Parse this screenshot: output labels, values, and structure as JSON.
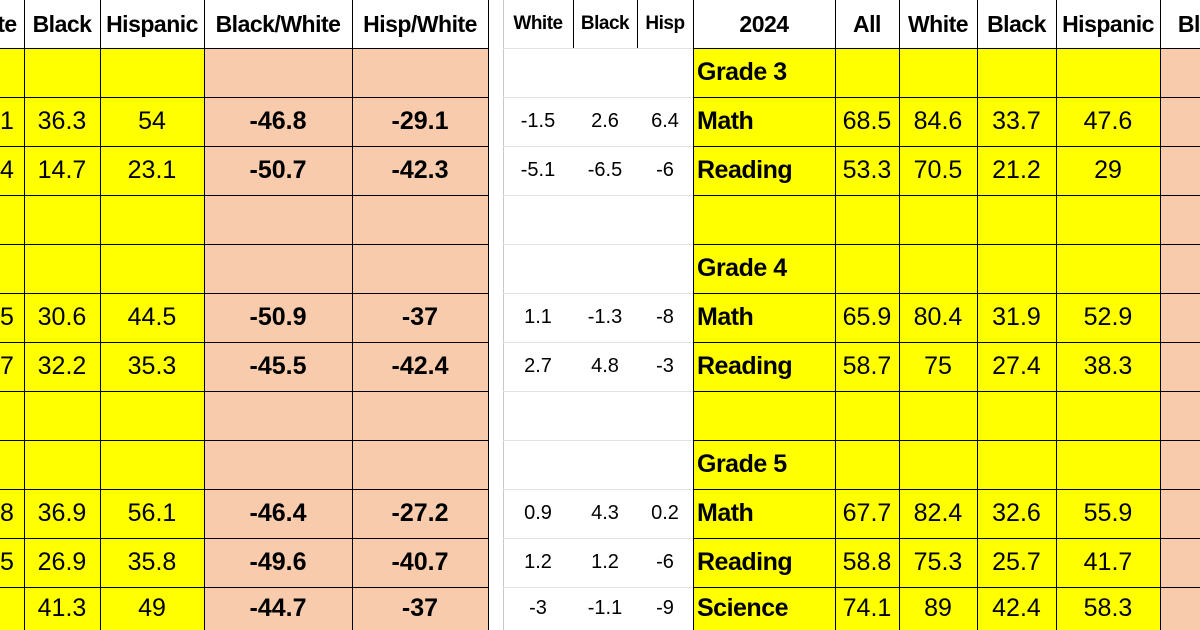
{
  "left_table": {
    "headers": [
      "te",
      "Black",
      "Hispanic",
      "Black/White",
      "Hisp/White"
    ],
    "rows": [
      [
        "",
        "",
        "",
        "",
        ""
      ],
      [
        "1",
        "36.3",
        "54",
        "-46.8",
        "-29.1"
      ],
      [
        "4",
        "14.7",
        "23.1",
        "-50.7",
        "-42.3"
      ],
      [
        "",
        "",
        "",
        "",
        ""
      ],
      [
        "",
        "",
        "",
        "",
        ""
      ],
      [
        "5",
        "30.6",
        "44.5",
        "-50.9",
        "-37"
      ],
      [
        "7",
        "32.2",
        "35.3",
        "-45.5",
        "-42.4"
      ],
      [
        "",
        "",
        "",
        "",
        ""
      ],
      [
        "",
        "",
        "",
        "",
        ""
      ],
      [
        "8",
        "36.9",
        "56.1",
        "-46.4",
        "-27.2"
      ],
      [
        "5",
        "26.9",
        "35.8",
        "-49.6",
        "-40.7"
      ],
      [
        "",
        "41.3",
        "49",
        "-44.7",
        "-37"
      ]
    ]
  },
  "change_table": {
    "headers": [
      "White",
      "Black",
      "Hisp"
    ],
    "rows": [
      [
        "",
        "",
        ""
      ],
      [
        "-1.5",
        "2.6",
        "6.4"
      ],
      [
        "-5.1",
        "-6.5",
        "-6"
      ],
      [
        "",
        "",
        ""
      ],
      [
        "",
        "",
        ""
      ],
      [
        "1.1",
        "-1.3",
        "-8"
      ],
      [
        "2.7",
        "4.8",
        "-3"
      ],
      [
        "",
        "",
        ""
      ],
      [
        "",
        "",
        ""
      ],
      [
        "0.9",
        "4.3",
        "0.2"
      ],
      [
        "1.2",
        "1.2",
        "-6"
      ],
      [
        "-3",
        "-1.1",
        "-9"
      ]
    ]
  },
  "right_table": {
    "headers": [
      "2024",
      "All",
      "White",
      "Black",
      "Hispanic",
      "Bla"
    ],
    "rows": [
      [
        "Grade 3",
        "",
        "",
        "",
        "",
        ""
      ],
      [
        "Math",
        "68.5",
        "84.6",
        "33.7",
        "47.6",
        ""
      ],
      [
        "Reading",
        "53.3",
        "70.5",
        "21.2",
        "29",
        ""
      ],
      [
        "",
        "",
        "",
        "",
        "",
        ""
      ],
      [
        "Grade 4",
        "",
        "",
        "",
        "",
        ""
      ],
      [
        "Math",
        "65.9",
        "80.4",
        "31.9",
        "52.9",
        ""
      ],
      [
        "Reading",
        "58.7",
        "75",
        "27.4",
        "38.3",
        ""
      ],
      [
        "",
        "",
        "",
        "",
        "",
        ""
      ],
      [
        "Grade 5",
        "",
        "",
        "",
        "",
        ""
      ],
      [
        "Math",
        "67.7",
        "82.4",
        "32.6",
        "55.9",
        ""
      ],
      [
        "Reading",
        "58.8",
        "75.3",
        "25.7",
        "41.7",
        ""
      ],
      [
        "Science",
        "74.1",
        "89",
        "42.4",
        "58.3",
        ""
      ]
    ]
  },
  "colors": {
    "yellow": "#ffff00",
    "peach": "#f8cbad",
    "white": "#ffffff",
    "grid": "#000000"
  }
}
